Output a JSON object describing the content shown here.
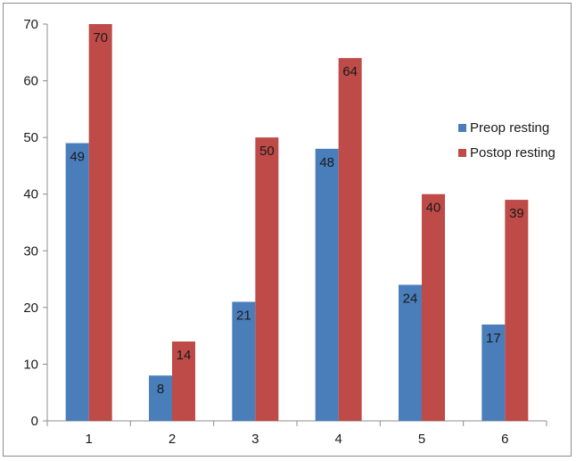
{
  "chart_data": {
    "type": "bar",
    "categories": [
      "1",
      "2",
      "3",
      "4",
      "5",
      "6"
    ],
    "series": [
      {
        "name": "Preop resting",
        "color": "#4a7ebb",
        "values": [
          49,
          8,
          21,
          48,
          24,
          17
        ]
      },
      {
        "name": "Postop resting",
        "color": "#be4b48",
        "values": [
          70,
          14,
          50,
          64,
          40,
          39
        ]
      }
    ],
    "ylim": [
      0,
      70
    ],
    "yticks": [
      0,
      10,
      20,
      30,
      40,
      50,
      60,
      70
    ],
    "grid": false,
    "legend": "right",
    "data_labels": true
  }
}
